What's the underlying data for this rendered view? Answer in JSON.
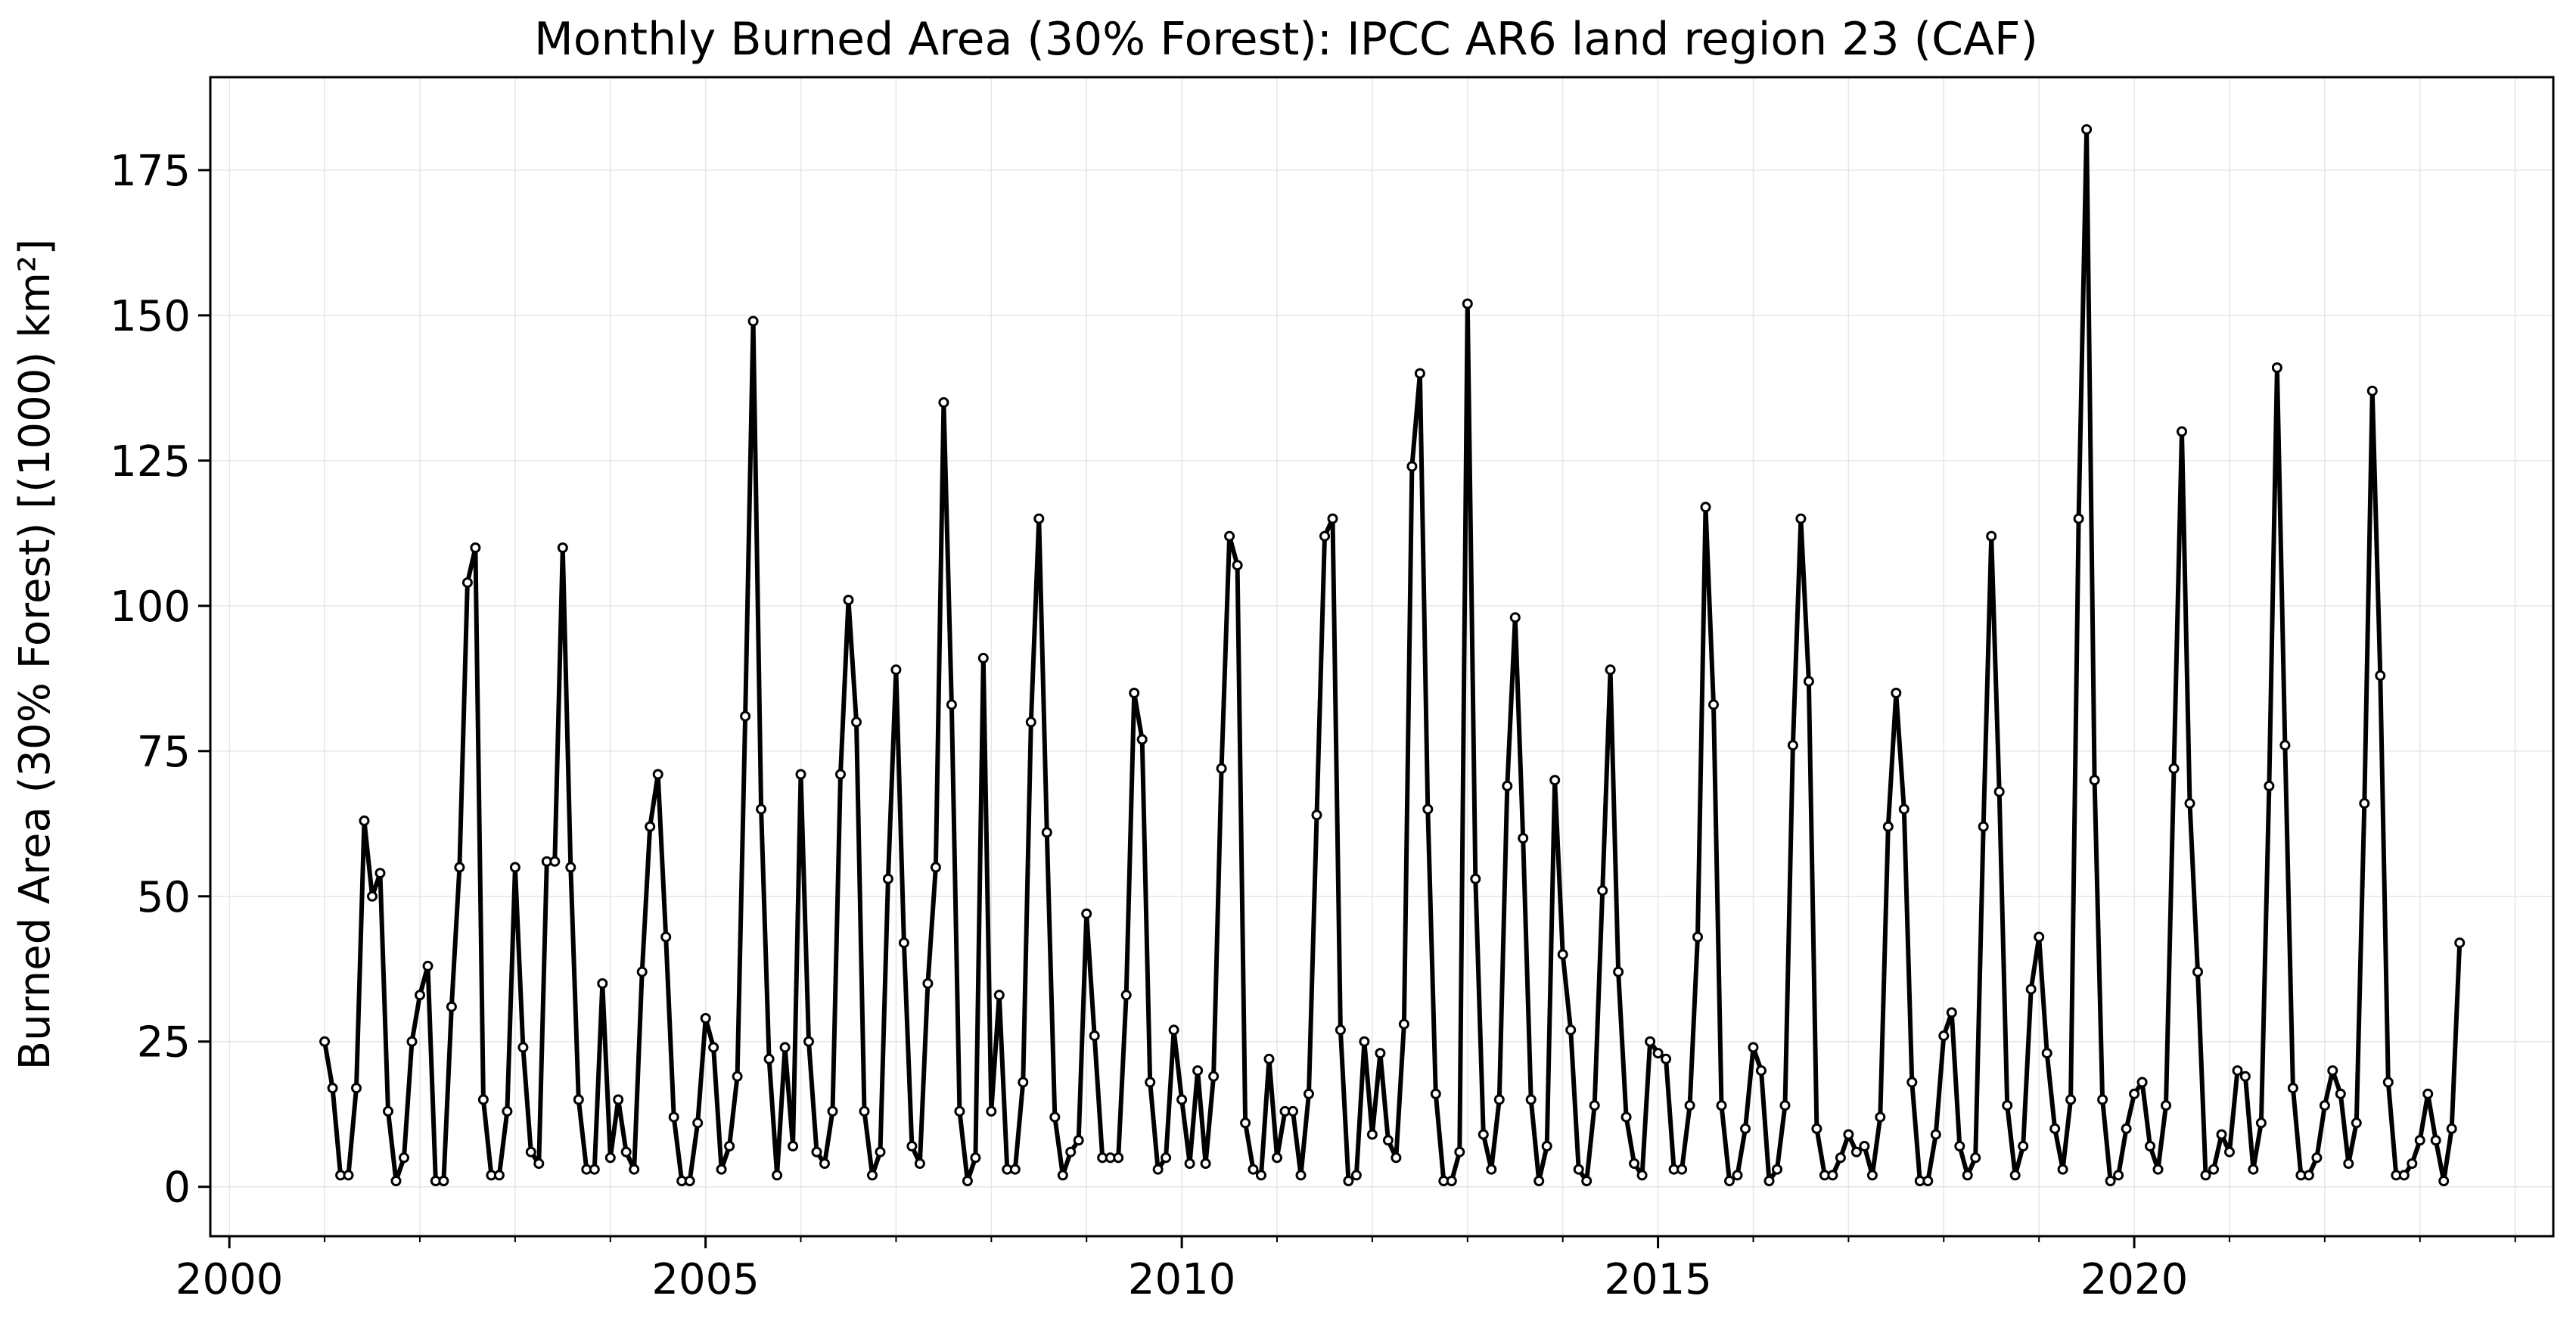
{
  "chart_data": {
    "type": "line",
    "title": "Monthly Burned Area (30% Forest): IPCC AR6 land region 23 (CAF)",
    "xlabel": "",
    "ylabel": "Burned Area (30% Forest) [(1000) km²]",
    "xlim": [
      1999.8,
      2024.4
    ],
    "ylim": [
      -8.5,
      191
    ],
    "x_ticks": [
      2000,
      2005,
      2010,
      2015,
      2020
    ],
    "y_ticks": [
      0,
      25,
      50,
      75,
      100,
      125,
      150,
      175
    ],
    "grid": true,
    "legend": "none",
    "x_start": 2001,
    "x_step": "1 month",
    "series": [
      {
        "color": "#000000",
        "marker": "circle",
        "values": [
          25,
          17,
          2,
          2,
          17,
          63,
          50,
          54,
          13,
          1,
          5,
          25,
          33,
          38,
          1,
          1,
          31,
          55,
          104,
          110,
          15,
          2,
          2,
          13,
          55,
          24,
          6,
          4,
          56,
          56,
          110,
          55,
          15,
          3,
          3,
          35,
          5,
          15,
          6,
          3,
          37,
          62,
          71,
          43,
          12,
          1,
          1,
          11,
          29,
          24,
          3,
          7,
          19,
          81,
          149,
          65,
          22,
          2,
          24,
          7,
          71,
          25,
          6,
          4,
          13,
          71,
          101,
          80,
          13,
          2,
          6,
          53,
          89,
          42,
          7,
          4,
          35,
          55,
          135,
          83,
          13,
          1,
          5,
          91,
          13,
          33,
          3,
          3,
          18,
          80,
          115,
          61,
          12,
          2,
          6,
          8,
          47,
          26,
          5,
          5,
          5,
          33,
          85,
          77,
          18,
          3,
          5,
          27,
          15,
          4,
          20,
          4,
          19,
          72,
          112,
          107,
          11,
          3,
          2,
          22,
          5,
          13,
          13,
          2,
          16,
          64,
          112,
          115,
          27,
          1,
          2,
          25,
          9,
          23,
          8,
          5,
          28,
          124,
          140,
          65,
          16,
          1,
          1,
          6,
          152,
          53,
          9,
          3,
          15,
          69,
          98,
          60,
          15,
          1,
          7,
          70,
          40,
          27,
          3,
          1,
          14,
          51,
          89,
          37,
          12,
          4,
          2,
          25,
          23,
          22,
          3,
          3,
          14,
          43,
          117,
          83,
          14,
          1,
          2,
          10,
          24,
          20,
          1,
          3,
          14,
          76,
          115,
          87,
          10,
          2,
          2,
          5,
          9,
          6,
          7,
          2,
          12,
          62,
          85,
          65,
          18,
          1,
          1,
          9,
          26,
          30,
          7,
          2,
          5,
          62,
          112,
          68,
          14,
          2,
          7,
          34,
          43,
          23,
          10,
          3,
          15,
          115,
          182,
          70,
          15,
          1,
          2,
          10,
          16,
          18,
          7,
          3,
          14,
          72,
          130,
          66,
          37,
          2,
          3,
          9,
          6,
          20,
          19,
          3,
          11,
          69,
          141,
          76,
          17,
          2,
          2,
          5,
          14,
          20,
          16,
          4,
          11,
          66,
          137,
          88,
          18,
          2,
          2,
          4,
          8,
          16,
          8,
          1,
          10,
          42
        ]
      }
    ]
  }
}
